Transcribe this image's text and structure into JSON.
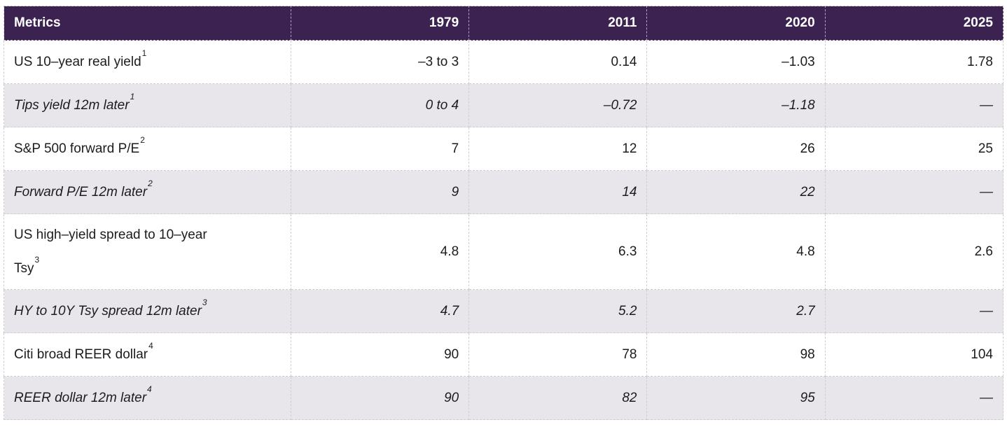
{
  "colors": {
    "header_bg": "#3b2251",
    "header_text": "#ffffff",
    "row_bg": "#ffffff",
    "row_alt_bg": "#e8e6ea",
    "border": "#cfcdd2",
    "header_divider": "rgba(255,255,255,0.6)",
    "body_text": "#1c1c1e"
  },
  "table": {
    "columns": [
      {
        "label": "Metrics"
      },
      {
        "label": "1979"
      },
      {
        "label": "2011"
      },
      {
        "label": "2020"
      },
      {
        "label": "2025"
      }
    ],
    "rows": [
      {
        "metric": "US 10–year real yield",
        "sup": "1",
        "italic": false,
        "values": [
          "–3 to 3",
          "0.14",
          "–1.03",
          "1.78"
        ]
      },
      {
        "metric": "Tips yield 12m later",
        "sup": "1",
        "italic": true,
        "values": [
          "0 to 4",
          "–0.72",
          "–1.18",
          "—"
        ]
      },
      {
        "metric": "S&P 500 forward P/E",
        "sup": "2",
        "italic": false,
        "values": [
          "7",
          "12",
          "26",
          "25"
        ]
      },
      {
        "metric": "Forward P/E 12m later",
        "sup": "2",
        "italic": true,
        "values": [
          "9",
          "14",
          "22",
          "—"
        ]
      },
      {
        "metric": "US high–yield spread to 10–year Tsy",
        "sup": "3",
        "italic": false,
        "values": [
          "4.8",
          "6.3",
          "4.8",
          "2.6"
        ]
      },
      {
        "metric": "HY to 10Y Tsy spread 12m later",
        "sup": "3",
        "italic": true,
        "values": [
          "4.7",
          "5.2",
          "2.7",
          "—"
        ]
      },
      {
        "metric": "Citi broad REER dollar",
        "sup": "4",
        "italic": false,
        "values": [
          "90",
          "78",
          "98",
          "104"
        ]
      },
      {
        "metric": "REER dollar 12m later",
        "sup": "4",
        "italic": true,
        "values": [
          "90",
          "82",
          "95",
          "—"
        ]
      }
    ]
  },
  "chart_data": {
    "type": "table",
    "title": "",
    "columns": [
      "Metrics",
      "1979",
      "2011",
      "2020",
      "2025"
    ],
    "rows": [
      [
        "US 10–year real yield¹",
        "–3 to 3",
        "0.14",
        "–1.03",
        "1.78"
      ],
      [
        "Tips yield 12m later¹",
        "0 to 4",
        "–0.72",
        "–1.18",
        "—"
      ],
      [
        "S&P 500 forward P/E²",
        "7",
        "12",
        "26",
        "25"
      ],
      [
        "Forward P/E 12m later²",
        "9",
        "14",
        "22",
        "—"
      ],
      [
        "US high–yield spread to 10–year Tsy³",
        "4.8",
        "6.3",
        "4.8",
        "2.6"
      ],
      [
        "HY to 10Y Tsy spread 12m later³",
        "4.7",
        "5.2",
        "2.7",
        "—"
      ],
      [
        "Citi broad REER dollar⁴",
        "90",
        "78",
        "98",
        "104"
      ],
      [
        "REER dollar 12m later⁴",
        "90",
        "82",
        "95",
        "—"
      ]
    ],
    "layout_hints": {
      "italic_rows_are_12m_later": [
        1,
        3,
        5,
        7
      ],
      "missing_value_symbol": "—",
      "value_alignment": "right",
      "borders": "dashed"
    }
  }
}
